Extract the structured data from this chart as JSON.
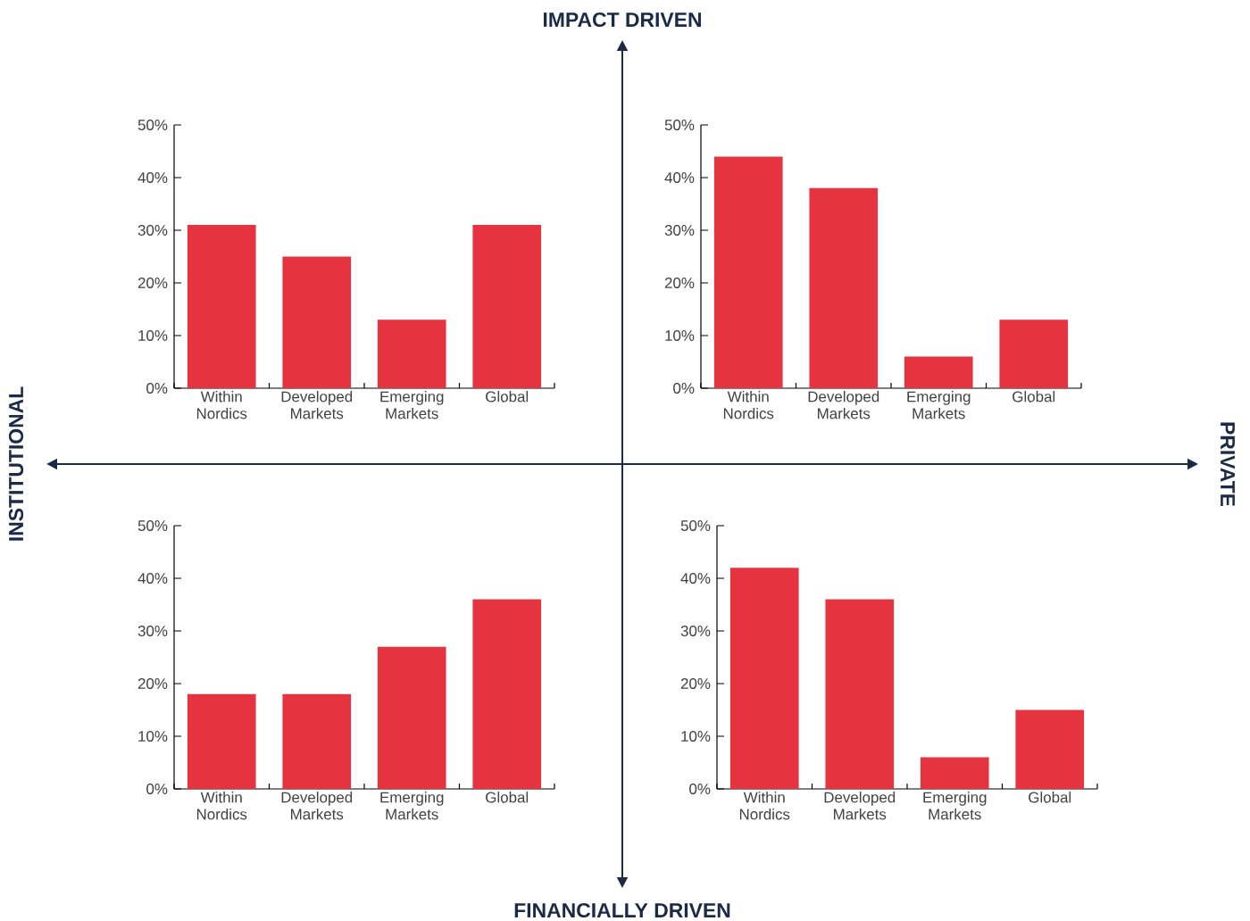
{
  "chart_data": [
    {
      "type": "bar",
      "categories": [
        "Within Nordics",
        "Developed Markets",
        "Emerging Markets",
        "Global"
      ],
      "values": [
        31,
        25,
        13,
        31
      ],
      "color": "#e63340",
      "ylim": [
        0,
        50
      ],
      "yticks": [
        {
          "value": 0,
          "label": "0%"
        },
        {
          "value": 10,
          "label": "10%"
        },
        {
          "value": 20,
          "label": "20%"
        },
        {
          "value": 30,
          "label": "30%"
        },
        {
          "value": 40,
          "label": "40%"
        },
        {
          "value": 50,
          "label": "50%"
        }
      ]
    },
    {
      "type": "bar",
      "categories": [
        "Within Nordics",
        "Developed Markets",
        "Emerging Markets",
        "Global"
      ],
      "values": [
        44,
        38,
        6,
        13
      ],
      "color": "#e63340",
      "ylim": [
        0,
        50
      ],
      "yticks": [
        {
          "value": 0,
          "label": "0%"
        },
        {
          "value": 10,
          "label": "10%"
        },
        {
          "value": 20,
          "label": "20%"
        },
        {
          "value": 30,
          "label": "30%"
        },
        {
          "value": 40,
          "label": "40%"
        },
        {
          "value": 50,
          "label": "50%"
        }
      ]
    },
    {
      "type": "bar",
      "categories": [
        "Within Nordics",
        "Developed Markets",
        "Emerging Markets",
        "Global"
      ],
      "values": [
        18,
        18,
        27,
        36
      ],
      "color": "#e63340",
      "ylim": [
        0,
        50
      ],
      "yticks": [
        {
          "value": 0,
          "label": "0%"
        },
        {
          "value": 10,
          "label": "10%"
        },
        {
          "value": 20,
          "label": "20%"
        },
        {
          "value": 30,
          "label": "30%"
        },
        {
          "value": 40,
          "label": "40%"
        },
        {
          "value": 50,
          "label": "50%"
        }
      ]
    },
    {
      "type": "bar",
      "categories": [
        "Within Nordics",
        "Developed Markets",
        "Emerging Markets",
        "Global"
      ],
      "values": [
        42,
        36,
        6,
        15
      ],
      "color": "#e63340",
      "ylim": [
        0,
        50
      ],
      "yticks": [
        {
          "value": 0,
          "label": "0%"
        },
        {
          "value": 10,
          "label": "10%"
        },
        {
          "value": 20,
          "label": "20%"
        },
        {
          "value": 30,
          "label": "30%"
        },
        {
          "value": 40,
          "label": "40%"
        },
        {
          "value": 50,
          "label": "50%"
        }
      ]
    },
    {
      "type": "other",
      "annotations": [
        "IMPACT DRIVEN",
        "FINANCIALLY DRIVEN",
        "INSTITUTIONAL",
        "PRIVATE"
      ]
    }
  ]
}
